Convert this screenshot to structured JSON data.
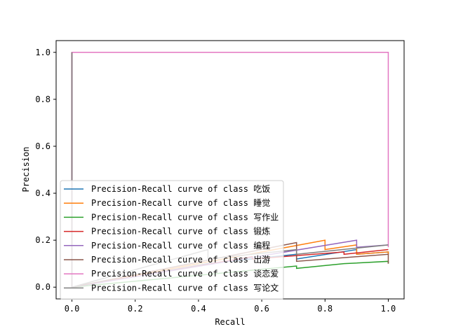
{
  "chart_data": {
    "type": "line",
    "title": "",
    "xlabel": "Recall",
    "ylabel": "Precision",
    "xlim": [
      -0.05,
      1.05
    ],
    "ylim": [
      -0.05,
      1.05
    ],
    "xticks": [
      0.0,
      0.2,
      0.4,
      0.6,
      0.8,
      1.0
    ],
    "xtick_labels": [
      "0.0",
      "0.2",
      "0.4",
      "0.6",
      "0.8",
      "1.0"
    ],
    "yticks": [
      0.0,
      0.2,
      0.4,
      0.6,
      0.8,
      1.0
    ],
    "ytick_labels": [
      "0.0",
      "0.2",
      "0.4",
      "0.6",
      "0.8",
      "1.0"
    ],
    "grid": false,
    "legend_position": "lower-left",
    "series": [
      {
        "name": "Precision-Recall curve of class 吃饭",
        "color": "#1f77b4",
        "x": [
          0,
          0,
          0,
          0.43,
          0.43,
          0.71,
          0.71,
          0.9,
          0.9,
          1.0,
          1.0
        ],
        "y": [
          1.0,
          0.0,
          0.0,
          0.1,
          0.1,
          0.14,
          0.12,
          0.16,
          0.14,
          0.15,
          0.14
        ]
      },
      {
        "name": "Precision-Recall curve of class 睡觉",
        "color": "#ff7f0e",
        "x": [
          0,
          0,
          0,
          0.8,
          0.8,
          0.9,
          0.9,
          1.0,
          1.0
        ],
        "y": [
          1.0,
          0.0,
          0.0,
          0.2,
          0.16,
          0.18,
          0.14,
          0.15,
          0.14
        ]
      },
      {
        "name": "Precision-Recall curve of class 写作业",
        "color": "#2ca02c",
        "x": [
          0,
          0,
          0,
          0.71,
          0.71,
          0.86,
          0.86,
          1.0,
          1.0
        ],
        "y": [
          1.0,
          0.0,
          0.0,
          0.09,
          0.08,
          0.1,
          0.1,
          0.11,
          0.1
        ]
      },
      {
        "name": "Precision-Recall curve of class 锻炼",
        "color": "#d62728",
        "x": [
          0,
          0,
          0,
          0.57,
          0.57,
          0.86,
          0.86,
          1.0,
          1.0
        ],
        "y": [
          1.0,
          0.0,
          0.0,
          0.13,
          0.12,
          0.15,
          0.14,
          0.16,
          0.16
        ]
      },
      {
        "name": "Precision-Recall curve of class 编程",
        "color": "#9467bd",
        "x": [
          0,
          0,
          0,
          0.9,
          0.9,
          1.0,
          1.0
        ],
        "y": [
          1.0,
          0.0,
          0.0,
          0.2,
          0.17,
          0.18,
          0.18
        ]
      },
      {
        "name": "Precision-Recall curve of class 出游",
        "color": "#8c564b",
        "x": [
          0,
          0,
          0,
          0.71,
          0.71,
          1.0,
          1.0
        ],
        "y": [
          1.0,
          0.0,
          0.0,
          0.19,
          0.11,
          0.14,
          0.1
        ]
      },
      {
        "name": "Precision-Recall curve of class 谈恋爱",
        "color": "#e377c2",
        "x": [
          0,
          0,
          1.0,
          1.0
        ],
        "y": [
          0.0,
          1.0,
          1.0,
          0.17
        ]
      },
      {
        "name": "Precision-Recall curve of class 写论文",
        "color": "#7f7f7f",
        "x": [
          0,
          0,
          0,
          0.43,
          0.43,
          0.71,
          0.71,
          1.0,
          1.0
        ],
        "y": [
          1.0,
          0.0,
          0.0,
          0.16,
          0.12,
          0.16,
          0.14,
          0.18,
          0.18
        ]
      }
    ]
  }
}
